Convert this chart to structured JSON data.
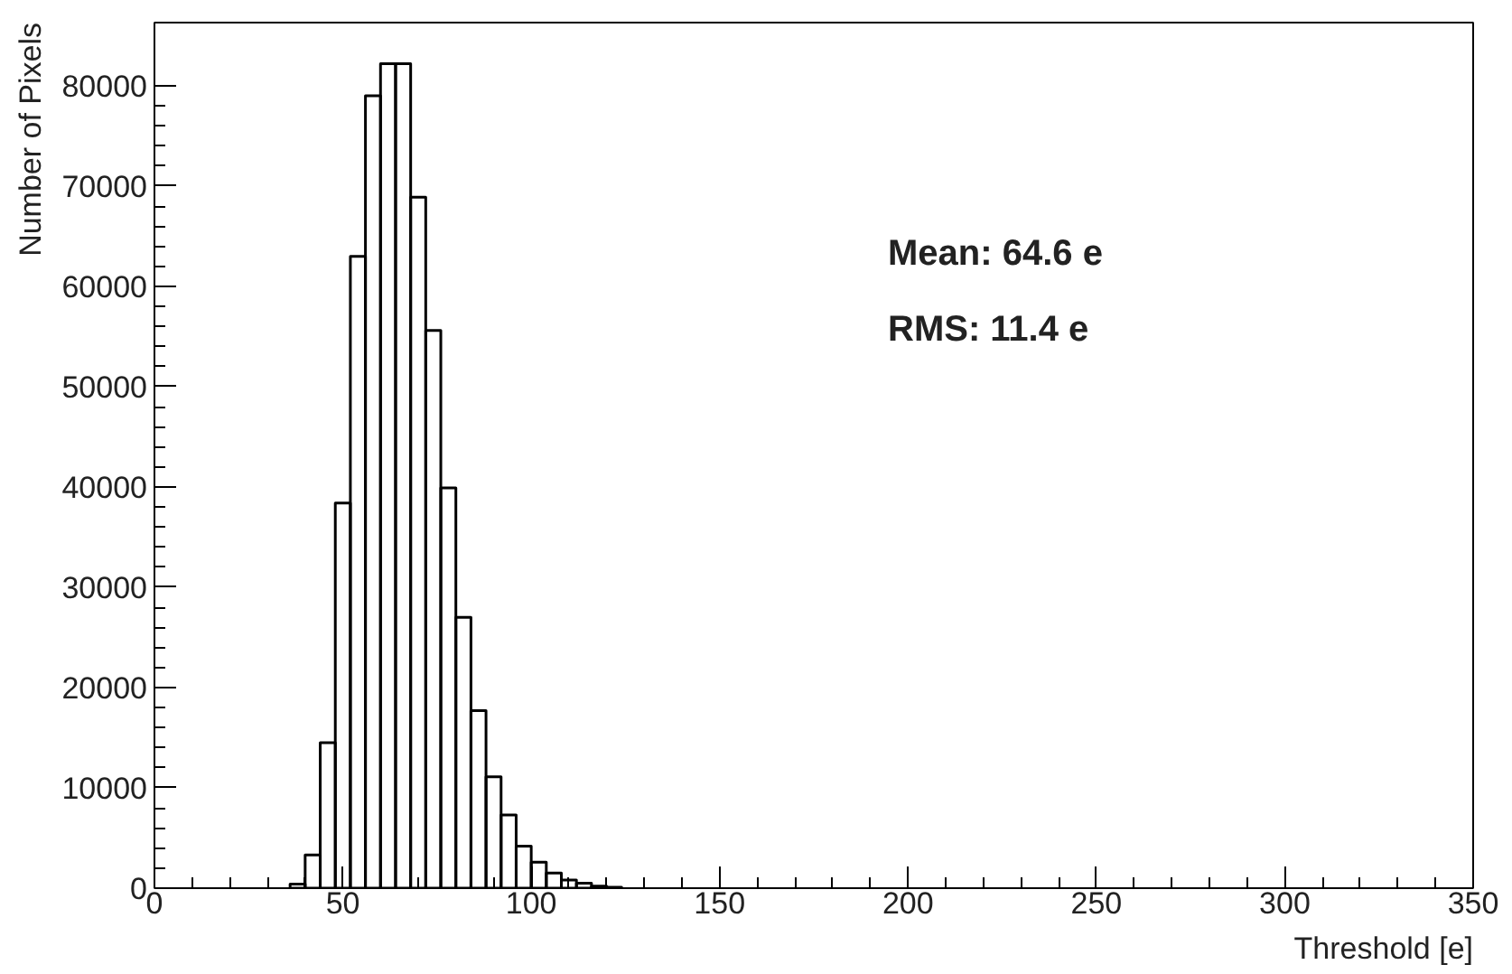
{
  "chart_data": {
    "type": "histogram",
    "xlabel": "Threshold [e]",
    "ylabel": "Number of Pixels",
    "bins": [
      36,
      40,
      44,
      48,
      52,
      56,
      60,
      64,
      68,
      72,
      76,
      80,
      84,
      88,
      92,
      96,
      100,
      104,
      108,
      112,
      116,
      120,
      124
    ],
    "values": [
      400,
      3300,
      14500,
      38400,
      63000,
      79000,
      82200,
      82200,
      68900,
      55600,
      39900,
      27000,
      17700,
      11100,
      7300,
      4200,
      2600,
      1500,
      800,
      500,
      200,
      100
    ],
    "color": "#000000",
    "xlim": [
      0,
      350
    ],
    "xticks": [
      0,
      50,
      100,
      150,
      200,
      250,
      300,
      350
    ],
    "ylim": [
      0,
      86300
    ],
    "yticks": [
      0,
      10000,
      20000,
      30000,
      40000,
      50000,
      60000,
      70000,
      80000
    ],
    "annotations": [
      "Mean: 64.6 e",
      "RMS: 11.4 e"
    ],
    "grid": false
  }
}
